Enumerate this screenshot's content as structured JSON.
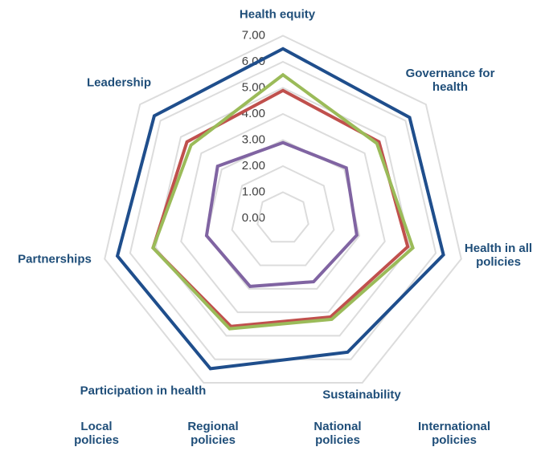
{
  "chart_data": {
    "type": "radar",
    "categories": [
      "Health equity",
      "Governance for health",
      "Health in all policies",
      "Sustainability",
      "Participation in health",
      "Partnerships",
      "Leadership"
    ],
    "ylim": [
      0,
      7
    ],
    "yticks": [
      {
        "value": 0,
        "label": "0.00"
      },
      {
        "value": 1,
        "label": "1.00"
      },
      {
        "value": 2,
        "label": "2.00"
      },
      {
        "value": 3,
        "label": "3.00"
      },
      {
        "value": 4,
        "label": "4.00"
      },
      {
        "value": 5,
        "label": "5.00"
      },
      {
        "value": 6,
        "label": "6.00"
      },
      {
        "value": 7,
        "label": "7.00"
      }
    ],
    "grid": true,
    "legend": "bottom",
    "series": [
      {
        "name": "Local policies",
        "color": "#8064a2",
        "values": [
          2.9,
          3.1,
          2.9,
          2.7,
          2.9,
          3.0,
          3.2
        ]
      },
      {
        "name": "Regional policies",
        "color": "#c0504d",
        "values": [
          4.9,
          4.7,
          4.9,
          4.2,
          4.6,
          5.1,
          4.7
        ]
      },
      {
        "name": "National policies",
        "color": "#9bbb59",
        "values": [
          5.5,
          4.6,
          5.1,
          4.3,
          4.7,
          5.1,
          4.5
        ]
      },
      {
        "name": "International policies",
        "color": "#1f4e8c",
        "values": [
          6.5,
          6.2,
          6.3,
          5.7,
          6.4,
          6.5,
          6.3
        ]
      }
    ]
  }
}
